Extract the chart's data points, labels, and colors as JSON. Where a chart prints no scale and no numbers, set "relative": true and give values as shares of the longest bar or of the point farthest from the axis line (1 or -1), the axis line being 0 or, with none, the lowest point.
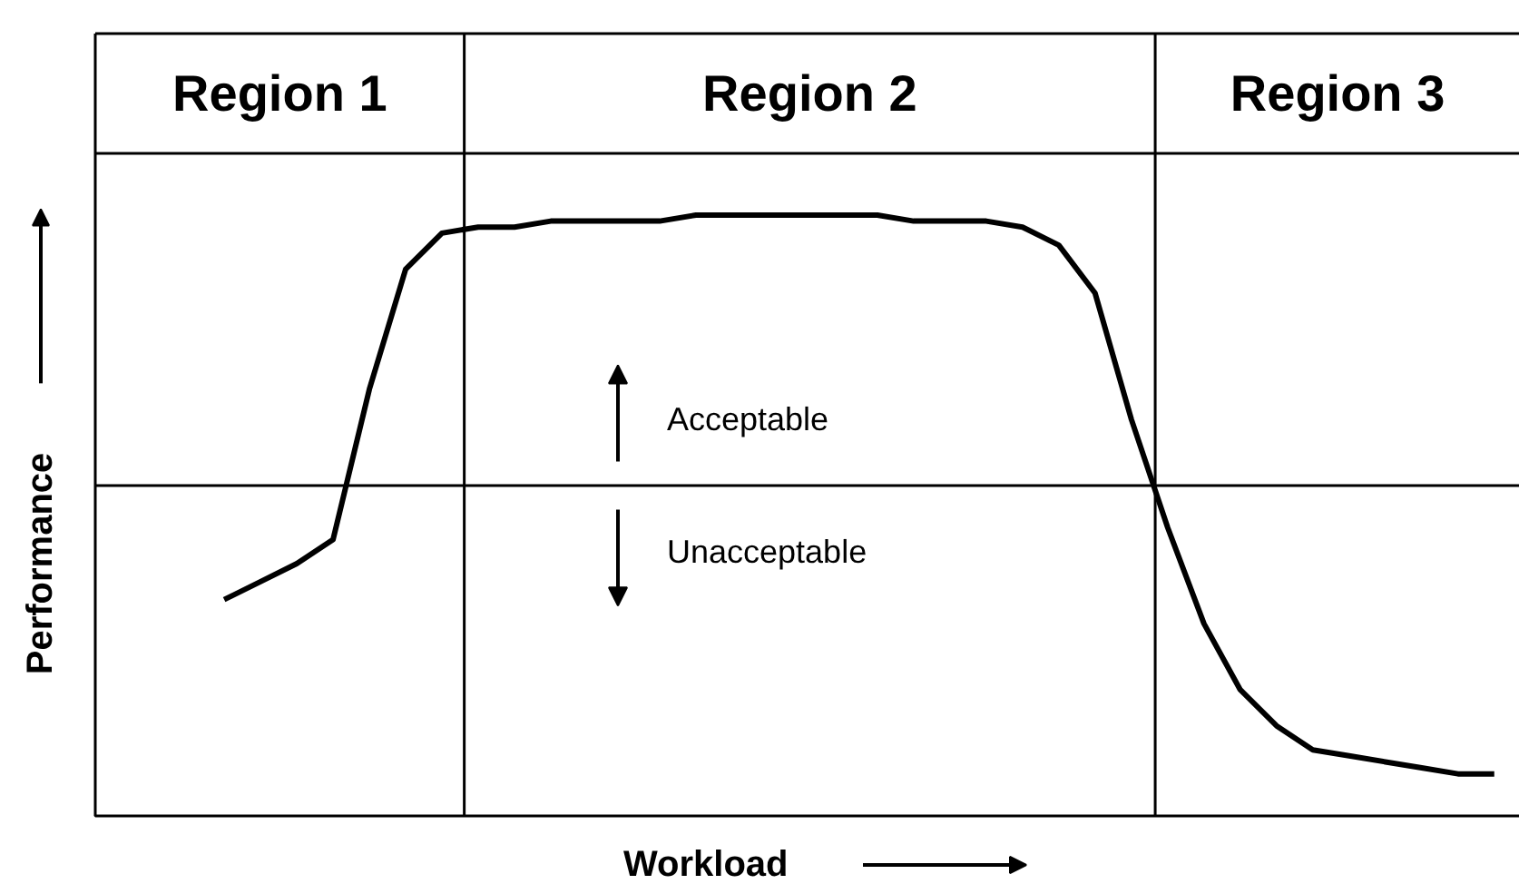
{
  "chart_data": {
    "type": "line",
    "relative": true,
    "xlabel": "Workload",
    "ylabel": "Performance",
    "categories": [
      null,
      null,
      null,
      null,
      null,
      null,
      null,
      null,
      null,
      null,
      null,
      null,
      null,
      null,
      null,
      null,
      null,
      null,
      null,
      null,
      null,
      null,
      null,
      null,
      null,
      null,
      null,
      null,
      null,
      null,
      null,
      null,
      null,
      null,
      null,
      null
    ],
    "series": [
      {
        "color": "#000000",
        "values": [
          0.36,
          0.39,
          0.42,
          0.46,
          0.71,
          0.91,
          0.97,
          0.98,
          0.98,
          0.99,
          0.99,
          0.99,
          0.99,
          1.0,
          1.0,
          1.0,
          1.0,
          1.0,
          1.0,
          0.99,
          0.99,
          0.99,
          0.98,
          0.95,
          0.87,
          0.66,
          0.48,
          0.32,
          0.21,
          0.15,
          0.11,
          0.1,
          0.09,
          0.08,
          0.07,
          0.07
        ]
      }
    ],
    "ref_lines": [
      {
        "axis": "y",
        "value": 0.55,
        "label": null,
        "color": "#000000"
      }
    ],
    "annotations": [
      "Region 1",
      "Region 2",
      "Region 3",
      "Acceptable",
      "Unacceptable"
    ]
  }
}
